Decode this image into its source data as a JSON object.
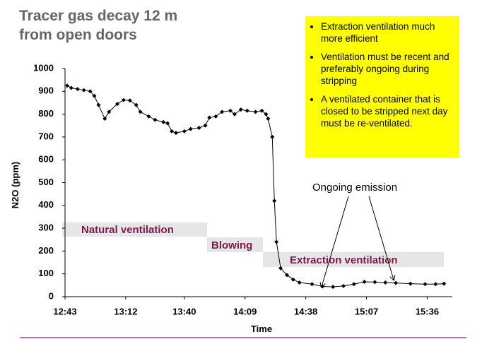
{
  "chart_data": {
    "type": "line",
    "title_lines": [
      "Tracer gas decay 12 m",
      "from open doors"
    ],
    "xlabel": "Time",
    "ylabel": "N2O (ppm)",
    "annotations": [
      "Natural ventilation",
      "Blowing",
      "Extraction ventilation",
      "Ongoing emission"
    ],
    "notes": [
      "Extraction ventilation much more efficient",
      "Ventilation must be recent and preferably ongoing during stripping",
      "A ventilated container that is closed to be stripped next day must be re-ventilated."
    ],
    "x": [
      764,
      766,
      769,
      772,
      775,
      777,
      779,
      782,
      784,
      788,
      791,
      794,
      797,
      799,
      803,
      806,
      810,
      812,
      814,
      816,
      820,
      823,
      827,
      830,
      832,
      835,
      838,
      842,
      844,
      847,
      850,
      854,
      857,
      859,
      860,
      862,
      863,
      864,
      866,
      869,
      872,
      875,
      881,
      886,
      891,
      896,
      901,
      906,
      911,
      916,
      921,
      928,
      935,
      940,
      944
    ],
    "series": [
      {
        "name": "N2O",
        "color": "#000000",
        "values": [
          925,
          915,
          910,
          905,
          900,
          880,
          840,
          780,
          810,
          845,
          862,
          860,
          840,
          810,
          790,
          775,
          765,
          760,
          725,
          718,
          725,
          735,
          740,
          750,
          785,
          790,
          810,
          815,
          800,
          820,
          815,
          810,
          815,
          800,
          780,
          700,
          420,
          240,
          125,
          95,
          75,
          62,
          55,
          45,
          43,
          47,
          55,
          65,
          64,
          62,
          60,
          57,
          55,
          55,
          57
        ]
      }
    ],
    "xlim": [
      763,
      948
    ],
    "xticks": [
      {
        "value": 763,
        "label": "12:43"
      },
      {
        "value": 792,
        "label": "13:12"
      },
      {
        "value": 820,
        "label": "13:40"
      },
      {
        "value": 849,
        "label": "14:09"
      },
      {
        "value": 878,
        "label": "14:38"
      },
      {
        "value": 907,
        "label": "15:07"
      },
      {
        "value": 936,
        "label": "15:36"
      }
    ],
    "ylim": [
      0,
      1000
    ],
    "yticks": [
      0,
      100,
      200,
      300,
      400,
      500,
      600,
      700,
      800,
      900,
      1000
    ],
    "grid": false
  }
}
